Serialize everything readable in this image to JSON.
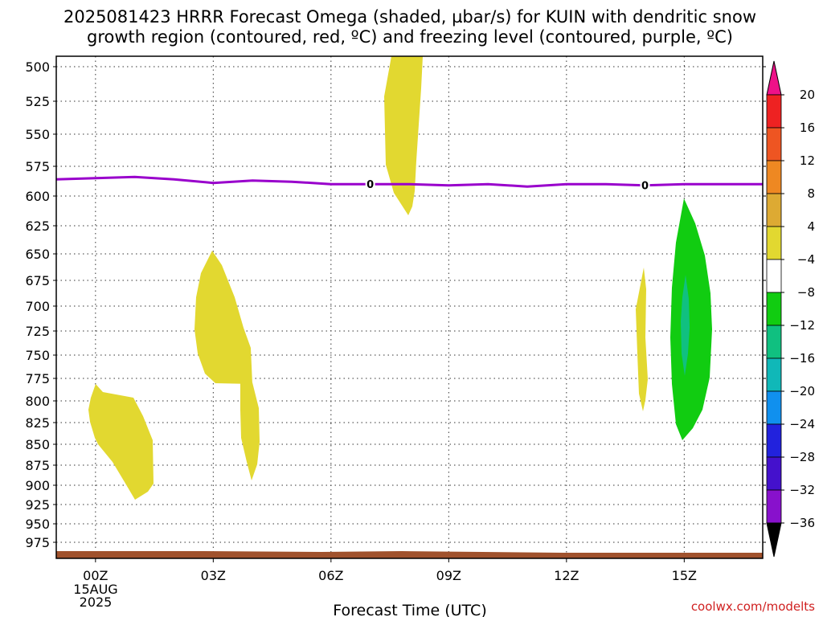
{
  "title_line1": "2025081423 HRRR Forecast Omega (shaded, µbar/s) for KUIN with dendritic snow",
  "title_line2": "growth region (contoured, red, ºC) and freezing level (contoured, purple, ºC)",
  "xlabel": "Forecast Time (UTC)",
  "date_label": {
    "day": "15AUG",
    "year": "2025"
  },
  "credit": "coolwx.com/modelts",
  "freezing_label": "0",
  "chart_data": {
    "type": "time-height contour",
    "x_ticks": [
      "00Z",
      "03Z",
      "06Z",
      "09Z",
      "12Z",
      "15Z"
    ],
    "x_tick_hours": [
      0,
      3,
      6,
      9,
      12,
      15
    ],
    "xlim_hours": [
      -1,
      17
    ],
    "y_ticks": [
      500,
      525,
      550,
      575,
      600,
      625,
      650,
      675,
      700,
      725,
      750,
      775,
      800,
      825,
      850,
      875,
      900,
      925,
      950,
      975
    ],
    "ylim_mb": [
      490,
      990
    ],
    "grid": true,
    "colorbar": {
      "labels": [
        20,
        16,
        12,
        8,
        4,
        -4,
        -8,
        -12,
        -16,
        -20,
        -24,
        -28,
        -32,
        -36
      ],
      "colors": [
        "#ff0000",
        "#ee5522",
        "#ee8822",
        "#ddaa33",
        "#e2d830",
        "#ffffff",
        "#11cc11",
        "#10c080",
        "#10b8b8",
        "#1090ee",
        "#2222dd",
        "#4411cc",
        "#8811cc",
        "#aa00cc",
        "#aaaaaa"
      ],
      "top_cap": "#ee1188",
      "bottom_cap": "#000000"
    },
    "freezing_level": {
      "color": "#9900cc",
      "hours": [
        -1,
        0,
        1,
        2,
        3,
        4,
        5,
        6,
        7,
        8,
        9,
        10,
        11,
        12,
        13,
        14,
        15,
        16,
        17
      ],
      "mb": [
        586,
        585,
        584,
        586,
        589,
        587,
        588,
        590,
        590,
        590,
        591,
        590,
        592,
        590,
        590,
        591,
        590,
        590,
        590
      ]
    },
    "omega_regions": [
      {
        "level": "4 to 8",
        "color": "#e2d830",
        "hours": [
          0.0,
          1.5
        ],
        "mb": [
          780,
          918
        ]
      },
      {
        "level": "4 to 8",
        "color": "#e2d830",
        "hours": [
          2.6,
          4.0
        ],
        "mb": [
          647,
          780
        ]
      },
      {
        "level": "4 to 8",
        "color": "#e2d830",
        "hours": [
          3.7,
          4.2
        ],
        "mb": [
          780,
          895
        ]
      },
      {
        "level": "4 to 8",
        "color": "#e2d830",
        "hours": [
          7.4,
          8.3
        ],
        "mb": [
          490,
          617
        ]
      },
      {
        "level": "4 to 8",
        "color": "#e2d830",
        "hours": [
          13.8,
          14.1
        ],
        "mb": [
          665,
          810
        ]
      },
      {
        "level": "-4 to -8",
        "color": "#11cc11",
        "hours": [
          14.7,
          15.7
        ],
        "mb": [
          602,
          845
        ]
      },
      {
        "level": "-8 to -12",
        "color": "#10c080",
        "hours": [
          14.9,
          15.1
        ],
        "mb": [
          680,
          770
        ]
      }
    ],
    "terrain": {
      "color": "#a0522d",
      "mb": 988
    }
  }
}
